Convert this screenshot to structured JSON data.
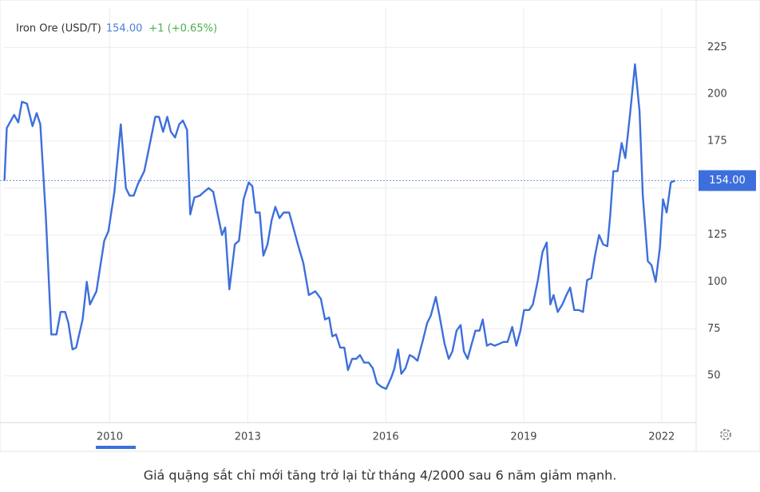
{
  "chart_data": {
    "type": "line",
    "title": "Iron Ore (USD/T)",
    "price": {
      "value": 154,
      "label": "154.00"
    },
    "change": "+1 (+0.65%)",
    "caption": "Giá quặng sắt chỉ mới tăng trở lại từ tháng 4/2000 sau 6 năm giảm mạnh.",
    "color": "#3d6fdc",
    "grid": true,
    "xlim": [
      2007.7,
      2022.75
    ],
    "ylim": [
      25,
      246
    ],
    "xticks": [
      2010,
      2013,
      2016,
      2019,
      2022
    ],
    "yticks": [
      50,
      75,
      100,
      125,
      150,
      175,
      200,
      225
    ],
    "x": [
      2007.71,
      2007.76,
      2007.92,
      2008.01,
      2008.09,
      2008.2,
      2008.32,
      2008.41,
      2008.49,
      2008.61,
      2008.73,
      2008.84,
      2008.93,
      2009.03,
      2009.1,
      2009.19,
      2009.27,
      2009.41,
      2009.5,
      2009.57,
      2009.71,
      2009.88,
      2009.97,
      2010.1,
      2010.24,
      2010.35,
      2010.43,
      2010.52,
      2010.61,
      2010.75,
      2010.85,
      2010.99,
      2011.07,
      2011.16,
      2011.25,
      2011.33,
      2011.42,
      2011.51,
      2011.59,
      2011.68,
      2011.75,
      2011.84,
      2011.96,
      2012.05,
      2012.15,
      2012.25,
      2012.34,
      2012.44,
      2012.51,
      2012.6,
      2012.72,
      2012.81,
      2012.91,
      2013.02,
      2013.1,
      2013.17,
      2013.26,
      2013.34,
      2013.43,
      2013.52,
      2013.6,
      2013.69,
      2013.78,
      2013.9,
      2013.99,
      2014.09,
      2014.21,
      2014.33,
      2014.47,
      2014.59,
      2014.68,
      2014.77,
      2014.84,
      2014.92,
      2015.01,
      2015.1,
      2015.18,
      2015.27,
      2015.36,
      2015.44,
      2015.53,
      2015.63,
      2015.72,
      2015.81,
      2015.91,
      2016.01,
      2016.12,
      2016.19,
      2016.27,
      2016.34,
      2016.43,
      2016.52,
      2016.6,
      2016.69,
      2016.81,
      2016.9,
      2016.98,
      2017.09,
      2017.17,
      2017.28,
      2017.37,
      2017.45,
      2017.54,
      2017.63,
      2017.7,
      2017.78,
      2017.87,
      2017.95,
      2018.04,
      2018.11,
      2018.2,
      2018.28,
      2018.37,
      2018.47,
      2018.56,
      2018.65,
      2018.75,
      2018.84,
      2018.93,
      2019.01,
      2019.12,
      2019.2,
      2019.31,
      2019.41,
      2019.5,
      2019.58,
      2019.65,
      2019.74,
      2019.84,
      2019.93,
      2020.01,
      2020.1,
      2020.2,
      2020.29,
      2020.38,
      2020.47,
      2020.55,
      2020.64,
      2020.73,
      2020.82,
      2020.88,
      2020.95,
      2021.04,
      2021.13,
      2021.21,
      2021.32,
      2021.42,
      2021.52,
      2021.59,
      2021.7,
      2021.78,
      2021.87,
      2021.96,
      2022.03,
      2022.11,
      2022.2,
      2022.29
    ],
    "values": [
      154,
      182,
      189,
      185,
      196,
      195,
      183,
      190,
      184,
      135,
      72,
      72,
      84,
      84,
      78,
      64,
      65,
      80,
      100,
      88,
      95,
      122,
      127,
      148,
      184,
      150,
      146,
      146,
      152,
      159,
      171,
      188,
      188,
      180,
      188,
      180,
      177,
      184,
      186,
      181,
      136,
      145,
      146,
      148,
      150,
      148,
      137,
      125,
      129,
      96,
      120,
      122,
      144,
      153,
      151,
      137,
      137,
      114,
      120,
      133,
      140,
      134,
      137,
      137,
      129,
      120,
      110,
      93,
      95,
      91,
      80,
      81,
      71,
      72,
      65,
      65,
      53,
      59,
      59,
      61,
      57,
      57,
      54,
      46,
      44,
      43,
      49,
      54,
      64,
      51,
      54,
      61,
      60,
      58,
      69,
      78,
      82,
      92,
      82,
      67,
      59,
      63,
      74,
      77,
      63,
      59,
      67,
      74,
      74,
      80,
      66,
      67,
      66,
      67,
      68,
      68,
      76,
      66,
      74,
      85,
      85,
      88,
      101,
      116,
      121,
      88,
      93,
      84,
      88,
      93,
      97,
      85,
      85,
      84,
      101,
      102,
      114,
      125,
      120,
      119,
      135,
      159,
      159,
      174,
      166,
      191,
      216,
      191,
      146,
      111,
      109,
      100,
      118,
      144,
      137,
      153,
      154
    ]
  }
}
